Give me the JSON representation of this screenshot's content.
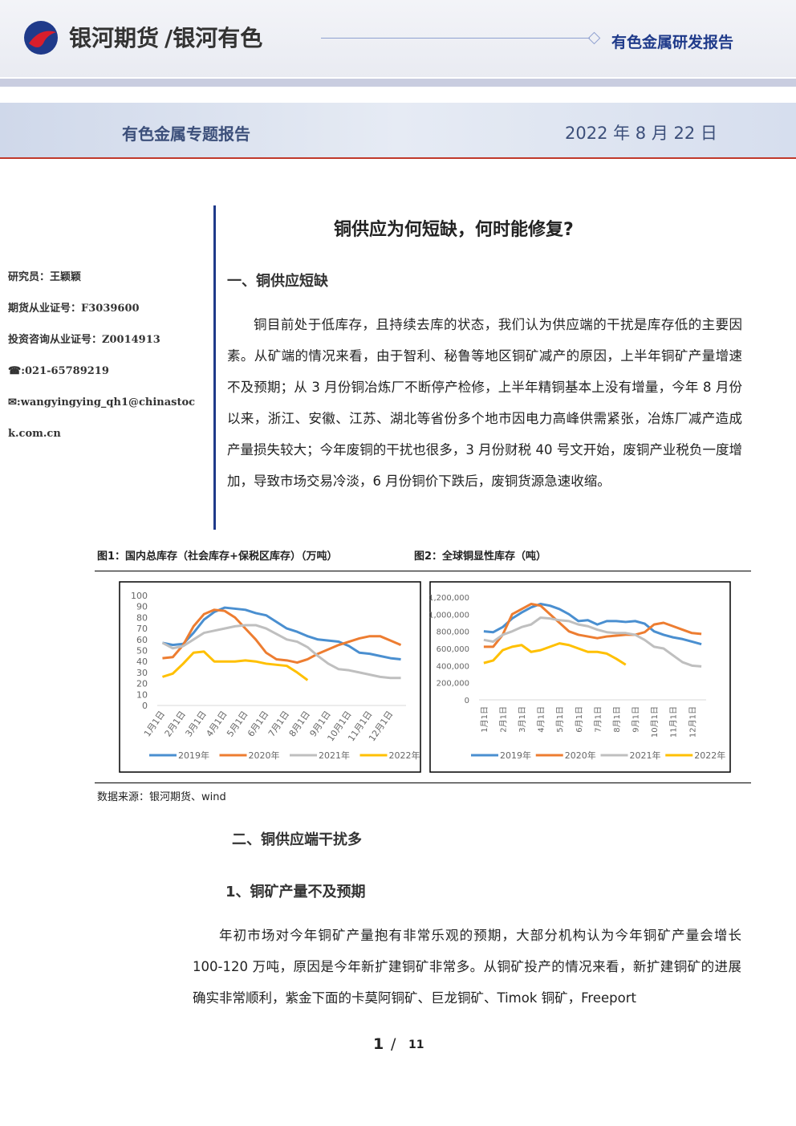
{
  "header": {
    "brand": "银河期货",
    "division": "/银河有色",
    "report_type": "有色金属研发报告"
  },
  "band": {
    "title": "有色金属专题报告",
    "date": "2022 年 8 月 22 日"
  },
  "sidebar": {
    "lines": [
      "研究员：王颖颖",
      "期货从业证号：F3039600",
      "投资咨询从业证号：Z0014913",
      "☎:021-65789219",
      "✉:wangyingying_qh1@chinastock.com.cn"
    ]
  },
  "main_title": "铜供应为何短缺，何时能修复?",
  "section1": {
    "heading": "一、铜供应短缺",
    "paragraph": "铜目前处于低库存，且持续去库的状态，我们认为供应端的干扰是库存低的主要因素。从矿端的情况来看，由于智利、秘鲁等地区铜矿减产的原因，上半年铜矿产量增速不及预期；从 3 月份铜冶炼厂不断停产检修，上半年精铜基本上没有增量，今年 8 月份以来，浙江、安徽、江苏、湖北等省份多个地市因电力高峰供需紧张，冶炼厂减产造成产量损失较大；今年废铜的干扰也很多，3 月份财税 40 号文开始，废铜产业税负一度增加，导致市场交易冷淡，6 月份铜价下跌后，废铜货源急速收缩。"
  },
  "figure_source": "数据来源：银河期货、wind",
  "section2": {
    "heading": "二、铜供应端干扰多",
    "subheading": "1、铜矿产量不及预期",
    "paragraph": "年初市场对今年铜矿产量抱有非常乐观的预期，大部分机构认为今年铜矿产量会增长 100-120 万吨，原因是今年新扩建铜矿非常多。从铜矿投产的情况来看，新扩建铜矿的进展确实非常顺利，紫金下面的卡莫阿铜矿、巨龙铜矿、Timok 铜矿，Freeport"
  },
  "footer": {
    "page": "1",
    "separator": "/",
    "total": "11"
  },
  "chart_data": [
    {
      "type": "line",
      "title": "图1：国内总库存（社会库存+保税区库存）（万吨）",
      "categories": [
        "1月1日",
        null,
        "2月1日",
        null,
        "3月1日",
        null,
        "4月1日",
        null,
        "5月1日",
        null,
        "6月1日",
        null,
        "7月1日",
        null,
        "8月1日",
        null,
        "9月1日",
        null,
        "10月1日",
        null,
        "11月1日",
        null,
        "12月1日",
        null
      ],
      "ylim": [
        0,
        100
      ],
      "yticks": [
        0,
        10,
        20,
        30,
        40,
        50,
        60,
        70,
        80,
        90,
        100
      ],
      "grid": false,
      "series": [
        {
          "name": "2019年",
          "color": "#4a8fd0",
          "values": [
            57,
            55,
            56,
            66,
            78,
            85,
            89,
            88,
            87,
            84,
            82,
            76,
            70,
            67,
            63,
            60,
            59,
            58,
            54,
            48,
            47,
            45,
            43,
            42
          ]
        },
        {
          "name": "2020年",
          "color": "#ed7d31",
          "values": [
            43,
            44,
            55,
            72,
            83,
            87,
            86,
            80,
            70,
            60,
            48,
            42,
            41,
            39,
            42,
            47,
            51,
            55,
            58,
            61,
            63,
            63,
            59,
            55
          ]
        },
        {
          "name": "2021年",
          "color": "#bfbfbf",
          "values": [
            57,
            52,
            54,
            60,
            66,
            68,
            70,
            72,
            73,
            73,
            70,
            65,
            60,
            58,
            53,
            45,
            38,
            33,
            32,
            30,
            28,
            26,
            25,
            25
          ]
        },
        {
          "name": "2022年",
          "color": "#ffc000",
          "values": [
            26,
            29,
            38,
            48,
            49,
            40,
            40,
            40,
            41,
            40,
            38,
            37,
            36,
            30,
            23,
            null,
            null,
            null,
            null,
            null,
            null,
            null,
            null,
            null
          ]
        }
      ]
    },
    {
      "type": "line",
      "title": "图2：全球铜显性库存（吨）",
      "categories": [
        "1月1日",
        null,
        "2月1日",
        null,
        "3月1日",
        null,
        "4月1日",
        null,
        "5月1日",
        null,
        "6月1日",
        null,
        "7月1日",
        null,
        "8月1日",
        null,
        "9月1日",
        null,
        "10月1日",
        null,
        "11月1日",
        null,
        "12月1日",
        null
      ],
      "ylim": [
        0,
        1200000
      ],
      "yticks": [
        0,
        {
          "value": 200000,
          "label": "200,000"
        },
        {
          "value": 400000,
          "label": "400,000"
        },
        {
          "value": 600000,
          "label": "600,000"
        },
        {
          "value": 800000,
          "label": "800,000"
        },
        {
          "value": 1000000,
          "label": "1,000,000"
        },
        {
          "value": 1200000,
          "label": "1,200,000"
        }
      ],
      "grid": false,
      "series": [
        {
          "name": "2019年",
          "color": "#4a8fd0",
          "values": [
            800000,
            790000,
            850000,
            950000,
            1020000,
            1080000,
            1120000,
            1100000,
            1060000,
            1000000,
            920000,
            930000,
            880000,
            920000,
            920000,
            910000,
            920000,
            890000,
            800000,
            760000,
            730000,
            710000,
            680000,
            650000
          ]
        },
        {
          "name": "2020年",
          "color": "#ed7d31",
          "values": [
            620000,
            620000,
            760000,
            1000000,
            1060000,
            1120000,
            1100000,
            1000000,
            900000,
            800000,
            760000,
            740000,
            720000,
            740000,
            750000,
            760000,
            760000,
            790000,
            880000,
            900000,
            860000,
            820000,
            780000,
            770000
          ]
        },
        {
          "name": "2021年",
          "color": "#bfbfbf",
          "values": [
            700000,
            680000,
            760000,
            800000,
            850000,
            880000,
            960000,
            950000,
            930000,
            920000,
            880000,
            860000,
            820000,
            790000,
            780000,
            780000,
            760000,
            700000,
            620000,
            600000,
            520000,
            440000,
            400000,
            390000
          ]
        },
        {
          "name": "2022年",
          "color": "#ffc000",
          "values": [
            430000,
            460000,
            580000,
            620000,
            640000,
            560000,
            580000,
            620000,
            660000,
            640000,
            600000,
            560000,
            560000,
            540000,
            480000,
            410000,
            null,
            null,
            null,
            null,
            null,
            null,
            null,
            null
          ]
        }
      ]
    }
  ]
}
